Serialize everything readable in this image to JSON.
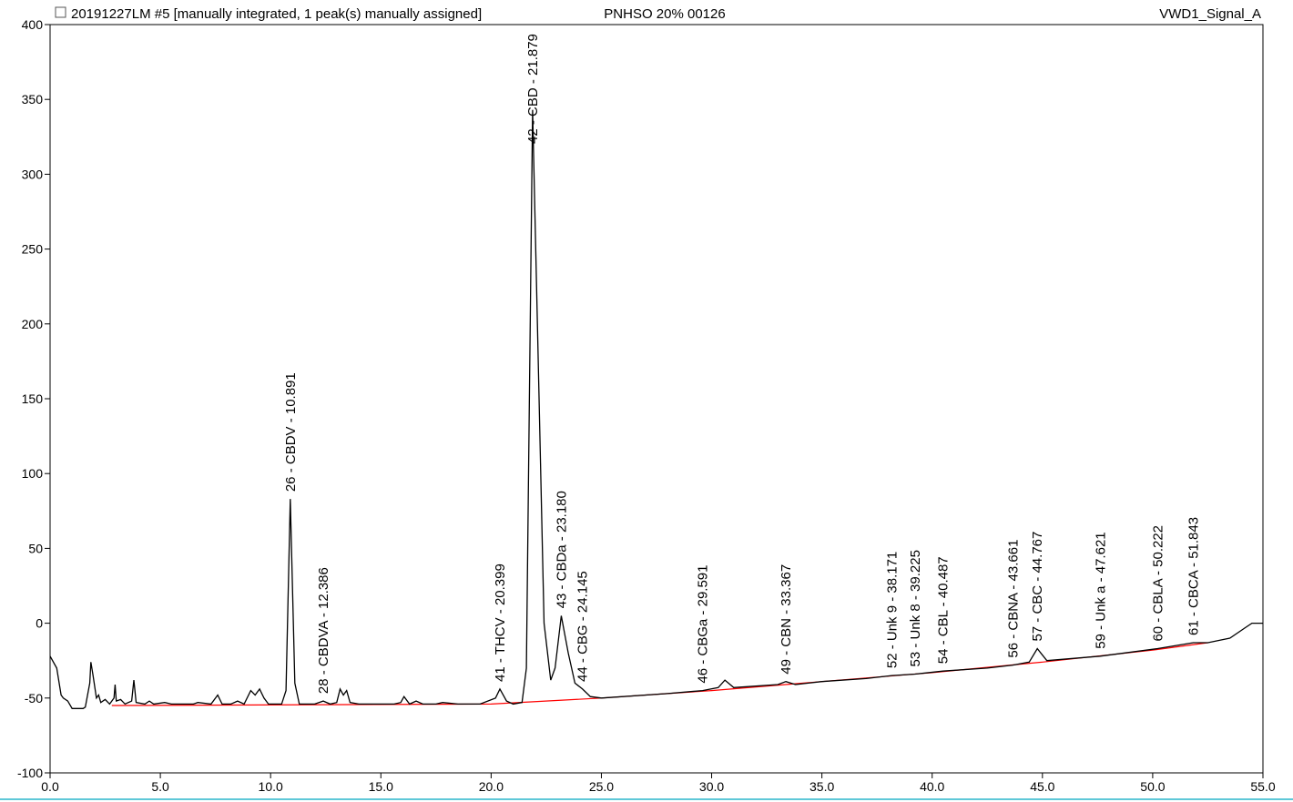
{
  "chart_data": {
    "type": "line",
    "title": "20191227LM #5 [manually integrated, 1 peak(s) manually assigned]",
    "subtitle": "PNHSO 20% 00126",
    "signal": "VWD1_Signal_A",
    "xlim": [
      0,
      55
    ],
    "ylim": [
      -100,
      400
    ],
    "xticks": [
      {
        "value": 0,
        "label": "0.0"
      },
      {
        "value": 5,
        "label": "5.0"
      },
      {
        "value": 10,
        "label": "10.0"
      },
      {
        "value": 15,
        "label": "15.0"
      },
      {
        "value": 20,
        "label": "20.0"
      },
      {
        "value": 25,
        "label": "25.0"
      },
      {
        "value": 30,
        "label": "30.0"
      },
      {
        "value": 35,
        "label": "35.0"
      },
      {
        "value": 40,
        "label": "40.0"
      },
      {
        "value": 45,
        "label": "45.0"
      },
      {
        "value": 50,
        "label": "50.0"
      },
      {
        "value": 55,
        "label": "55.0"
      }
    ],
    "yticks": [
      -100,
      -50,
      0,
      50,
      100,
      150,
      200,
      250,
      300,
      350,
      400
    ],
    "trace": {
      "color": "#000000",
      "x": [
        0,
        0.3,
        0.5,
        0.6,
        0.8,
        1.0,
        1.5,
        1.6,
        1.8,
        1.85,
        1.95,
        2.1,
        2.2,
        2.3,
        2.5,
        2.7,
        2.9,
        2.95,
        3.0,
        3.2,
        3.4,
        3.7,
        3.8,
        3.9,
        4.3,
        4.5,
        4.7,
        5.2,
        5.5,
        6.5,
        6.7,
        7.3,
        7.6,
        7.8,
        8.2,
        8.5,
        8.8,
        9.1,
        9.3,
        9.5,
        9.7,
        9.9,
        10.5,
        10.7,
        10.891,
        11.1,
        11.3,
        12.0,
        12.386,
        12.7,
        13.0,
        13.15,
        13.3,
        13.45,
        13.6,
        14.0,
        15.6,
        15.9,
        16.05,
        16.3,
        16.6,
        16.9,
        17.5,
        17.8,
        18.5,
        19.5,
        20.2,
        20.399,
        20.7,
        21.0,
        21.4,
        21.6,
        21.879,
        22.1,
        22.4,
        22.7,
        22.9,
        23.18,
        23.5,
        23.8,
        24.145,
        24.5,
        25.0,
        28.0,
        29.591,
        30.3,
        30.6,
        31.0,
        33.0,
        33.367,
        33.8,
        35.0,
        37.0,
        38.171,
        39.225,
        40.487,
        42.5,
        43.661,
        44.4,
        44.767,
        45.2,
        47.621,
        50.222,
        51.843,
        52.5,
        53.5,
        54.2,
        54.5,
        55.0
      ],
      "values": [
        -22,
        -30,
        -48,
        -50,
        -52,
        -57,
        -57,
        -56,
        -40,
        -26,
        -35,
        -50,
        -48,
        -53,
        -51,
        -54,
        -50,
        -41,
        -52,
        -51,
        -54,
        -52,
        -38,
        -53,
        -54,
        -52,
        -54,
        -53,
        -54,
        -54,
        -53,
        -54,
        -48,
        -54,
        -54,
        -52,
        -54,
        -45,
        -48,
        -44,
        -50,
        -54,
        -54,
        -45,
        83,
        -40,
        -54,
        -54,
        -52,
        -54,
        -53,
        -44,
        -48,
        -45,
        -53,
        -54,
        -54,
        -53,
        -49,
        -54,
        -52,
        -54,
        -54,
        -53,
        -54,
        -54,
        -50,
        -44,
        -52,
        -54,
        -53,
        -30,
        343,
        200,
        0,
        -38,
        -30,
        5,
        -20,
        -40,
        -44,
        -49,
        -50,
        -47,
        -45,
        -43,
        -38,
        -43,
        -41,
        -39,
        -41,
        -39,
        -37,
        -35,
        -34,
        -32,
        -30,
        -28,
        -26,
        -17,
        -25,
        -22,
        -17,
        -13,
        -13,
        -10,
        -3,
        0,
        0
      ]
    },
    "baseline": {
      "color": "#ff0000",
      "x": [
        2.8,
        20,
        25,
        30,
        35,
        40,
        45,
        50,
        52.5
      ],
      "values": [
        -55,
        -54,
        -50,
        -45,
        -39,
        -33,
        -26,
        -18,
        -13
      ]
    },
    "peaks": [
      {
        "label": "26 - CBDV - 10.891",
        "x": 10.891
      },
      {
        "label": "28 - CBDVA - 12.386",
        "x": 12.386
      },
      {
        "label": "41 - THCV - 20.399",
        "x": 20.399
      },
      {
        "label": "42 - CBD - 21.879",
        "x": 21.879
      },
      {
        "label": "43 - CBDa - 23.180",
        "x": 23.18
      },
      {
        "label": "44 - CBG - 24.145",
        "x": 24.145
      },
      {
        "label": "46 - CBGa - 29.591",
        "x": 29.591
      },
      {
        "label": "49 - CBN - 33.367",
        "x": 33.367
      },
      {
        "label": "52 - Unk 9 - 38.171",
        "x": 38.171
      },
      {
        "label": "53 - Unk 8 - 39.225",
        "x": 39.225
      },
      {
        "label": "54 - CBL - 40.487",
        "x": 40.487
      },
      {
        "label": "56 - CBNA - 43.661",
        "x": 43.661
      },
      {
        "label": "57 - CBC - 44.767",
        "x": 44.767
      },
      {
        "label": "59 - Unk a - 47.621",
        "x": 47.621
      },
      {
        "label": "60 - CBLA - 50.222",
        "x": 50.222
      },
      {
        "label": "61 - CBCA - 51.843",
        "x": 51.843
      }
    ]
  }
}
